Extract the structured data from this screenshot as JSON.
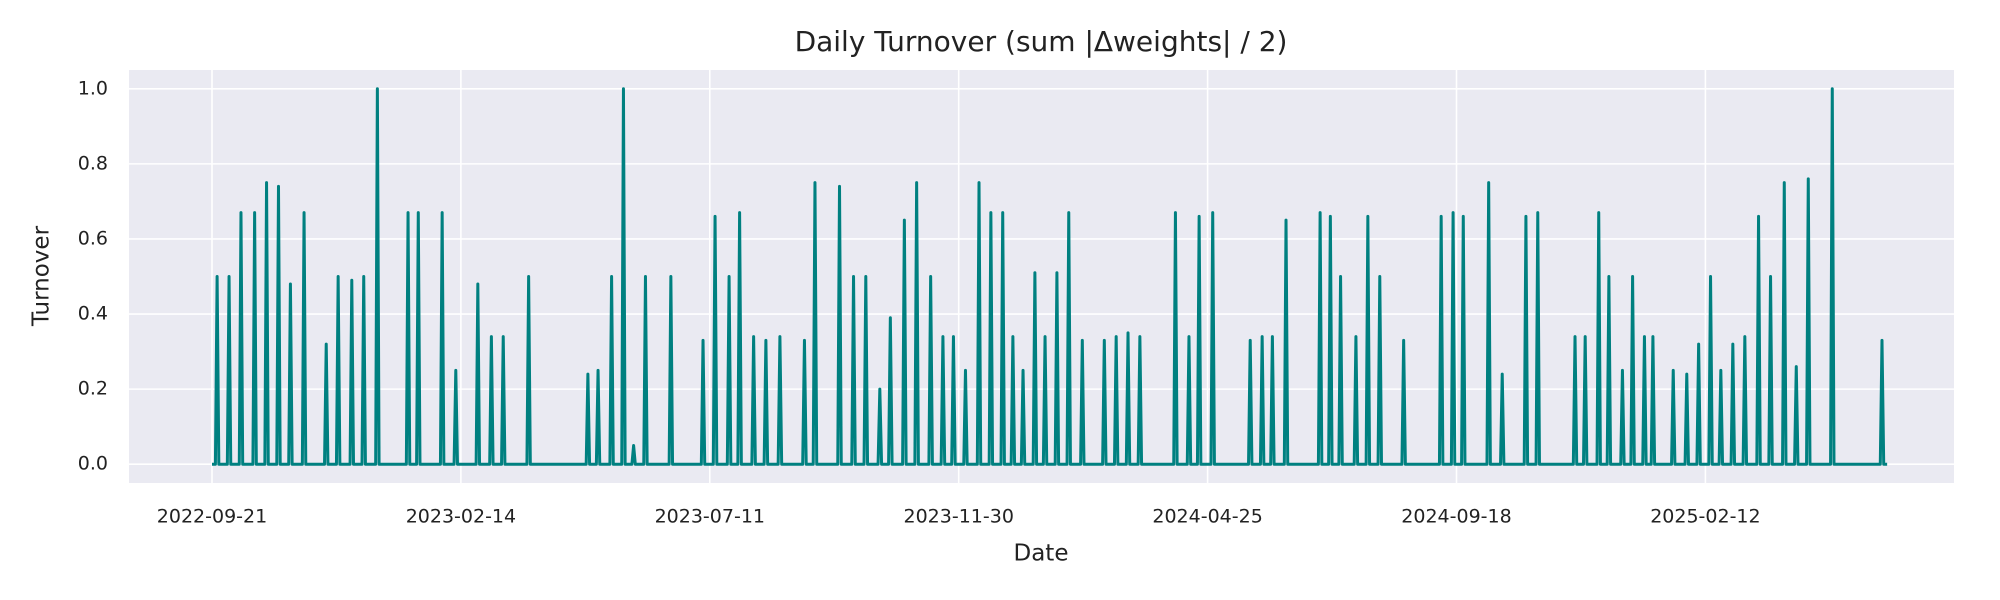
{
  "chart_data": {
    "type": "line",
    "title": "Daily Turnover (sum |Δweights| / 2)",
    "xlabel": "Date",
    "ylabel": "Turnover",
    "grid": true,
    "xlim": [
      "2022-08-04",
      "2025-07-07"
    ],
    "xticks": [
      "2022-09-21",
      "2023-02-14",
      "2023-07-11",
      "2023-11-30",
      "2024-04-25",
      "2024-09-18",
      "2025-02-12"
    ],
    "ylim": [
      -0.05,
      1.05
    ],
    "yticks": [
      {
        "value": 0,
        "label": "0.0"
      },
      0.2,
      0.4,
      0.6,
      0.8,
      {
        "value": 1,
        "label": "1.0"
      }
    ],
    "x": [
      "2022-09-21",
      "2022-09-23",
      "2022-09-24",
      "2022-09-25",
      "2022-09-30",
      "2022-10-01",
      "2022-10-02",
      "2022-10-07",
      "2022-10-08",
      "2022-10-09",
      "2022-10-15",
      "2022-10-16",
      "2022-10-17",
      "2022-10-22",
      "2022-10-23",
      "2022-10-24",
      "2022-10-29",
      "2022-10-30",
      "2022-10-31",
      "2022-11-05",
      "2022-11-06",
      "2022-11-07",
      "2022-11-13",
      "2022-11-14",
      "2022-11-15",
      "2022-11-26",
      "2022-11-27",
      "2022-11-28",
      "2022-12-03",
      "2022-12-04",
      "2022-12-05",
      "2022-12-11",
      "2022-12-12",
      "2022-12-13",
      "2022-12-18",
      "2022-12-19",
      "2022-12-20",
      "2022-12-26",
      "2022-12-27",
      "2022-12-28",
      "2023-01-13",
      "2023-01-14",
      "2023-01-15",
      "2023-01-19",
      "2023-01-20",
      "2023-01-21",
      "2023-02-02",
      "2023-02-03",
      "2023-02-04",
      "2023-02-10",
      "2023-02-11",
      "2023-02-12",
      "2023-02-23",
      "2023-02-24",
      "2023-02-25",
      "2023-03-03",
      "2023-03-04",
      "2023-03-05",
      "2023-03-10",
      "2023-03-11",
      "2023-03-12",
      "2023-03-25",
      "2023-03-26",
      "2023-03-27",
      "2023-04-29",
      "2023-04-30",
      "2023-05-01",
      "2023-05-05",
      "2023-05-06",
      "2023-05-07",
      "2023-05-13",
      "2023-05-14",
      "2023-05-15",
      "2023-05-20",
      "2023-05-21",
      "2023-05-22",
      "2023-05-26",
      "2023-05-27",
      "2023-05-28",
      "2023-06-02",
      "2023-06-03",
      "2023-06-04",
      "2023-06-17",
      "2023-06-18",
      "2023-06-19",
      "2023-07-06",
      "2023-07-07",
      "2023-07-08",
      "2023-07-13",
      "2023-07-14",
      "2023-07-15",
      "2023-07-21",
      "2023-07-22",
      "2023-07-23",
      "2023-07-27",
      "2023-07-28",
      "2023-07-29",
      "2023-08-04",
      "2023-08-05",
      "2023-08-06",
      "2023-08-11",
      "2023-08-12",
      "2023-08-13",
      "2023-08-19",
      "2023-08-20",
      "2023-08-21",
      "2023-09-02",
      "2023-09-03",
      "2023-09-04",
      "2023-09-08",
      "2023-09-09",
      "2023-09-10",
      "2023-09-22",
      "2023-09-23",
      "2023-09-24",
      "2023-09-30",
      "2023-10-01",
      "2023-10-02",
      "2023-10-07",
      "2023-10-08",
      "2023-10-09",
      "2023-10-15",
      "2023-10-16",
      "2023-10-17",
      "2023-10-21",
      "2023-10-22",
      "2023-10-23",
      "2023-10-29",
      "2023-10-30",
      "2023-10-31",
      "2023-11-05",
      "2023-11-06",
      "2023-11-07",
      "2023-11-13",
      "2023-11-14",
      "2023-11-15",
      "2023-11-20",
      "2023-11-21",
      "2023-11-22",
      "2023-11-26",
      "2023-11-27",
      "2023-11-28",
      "2023-12-03",
      "2023-12-04",
      "2023-12-05",
      "2023-12-11",
      "2023-12-12",
      "2023-12-13",
      "2023-12-18",
      "2023-12-19",
      "2023-12-20",
      "2023-12-25",
      "2023-12-26",
      "2023-12-27",
      "2023-12-31",
      "2024-01-01",
      "2024-01-02",
      "2024-01-06",
      "2024-01-07",
      "2024-01-08",
      "2024-01-13",
      "2024-01-14",
      "2024-01-15",
      "2024-01-19",
      "2024-01-20",
      "2024-01-21",
      "2024-01-26",
      "2024-01-27",
      "2024-01-28",
      "2024-02-02",
      "2024-02-03",
      "2024-02-04",
      "2024-02-10",
      "2024-02-11",
      "2024-02-12",
      "2024-02-23",
      "2024-02-24",
      "2024-02-25",
      "2024-03-01",
      "2024-03-02",
      "2024-03-03",
      "2024-03-08",
      "2024-03-09",
      "2024-03-10",
      "2024-03-15",
      "2024-03-16",
      "2024-03-17",
      "2024-04-05",
      "2024-04-06",
      "2024-04-07",
      "2024-04-13",
      "2024-04-14",
      "2024-04-15",
      "2024-04-19",
      "2024-04-20",
      "2024-04-21",
      "2024-04-27",
      "2024-04-28",
      "2024-04-29",
      "2024-05-19",
      "2024-05-20",
      "2024-05-21",
      "2024-05-26",
      "2024-05-27",
      "2024-05-28",
      "2024-06-01",
      "2024-06-02",
      "2024-06-03",
      "2024-06-09",
      "2024-06-10",
      "2024-06-11",
      "2024-06-29",
      "2024-06-30",
      "2024-07-01",
      "2024-07-05",
      "2024-07-06",
      "2024-07-07",
      "2024-07-11",
      "2024-07-12",
      "2024-07-13",
      "2024-07-20",
      "2024-07-21",
      "2024-07-22",
      "2024-07-27",
      "2024-07-28",
      "2024-07-29",
      "2024-08-03",
      "2024-08-04",
      "2024-08-05",
      "2024-08-17",
      "2024-08-18",
      "2024-08-19",
      "2024-09-08",
      "2024-09-09",
      "2024-09-10",
      "2024-09-15",
      "2024-09-16",
      "2024-09-17",
      "2024-09-21",
      "2024-09-22",
      "2024-09-23",
      "2024-10-06",
      "2024-10-07",
      "2024-10-08",
      "2024-10-14",
      "2024-10-15",
      "2024-10-16",
      "2024-10-28",
      "2024-10-29",
      "2024-10-30",
      "2024-11-04",
      "2024-11-05",
      "2024-11-06",
      "2024-11-26",
      "2024-11-27",
      "2024-11-28",
      "2024-12-02",
      "2024-12-03",
      "2024-12-04",
      "2024-12-10",
      "2024-12-11",
      "2024-12-12",
      "2024-12-16",
      "2024-12-17",
      "2024-12-18",
      "2024-12-24",
      "2024-12-25",
      "2024-12-26",
      "2024-12-30",
      "2024-12-31",
      "2025-01-01",
      "2025-01-06",
      "2025-01-07",
      "2025-01-08",
      "2025-01-11",
      "2025-01-12",
      "2025-01-13",
      "2025-01-23",
      "2025-01-24",
      "2025-01-25",
      "2025-01-31",
      "2025-02-01",
      "2025-02-02",
      "2025-02-07",
      "2025-02-08",
      "2025-02-09",
      "2025-02-14",
      "2025-02-15",
      "2025-02-16",
      "2025-02-20",
      "2025-02-21",
      "2025-02-22",
      "2025-02-27",
      "2025-02-28",
      "2025-03-01",
      "2025-03-06",
      "2025-03-07",
      "2025-03-08",
      "2025-03-14",
      "2025-03-15",
      "2025-03-16",
      "2025-03-21",
      "2025-03-22",
      "2025-03-23",
      "2025-03-29",
      "2025-03-30",
      "2025-03-31",
      "2025-04-05",
      "2025-04-06",
      "2025-04-07",
      "2025-04-12",
      "2025-04-13",
      "2025-04-14",
      "2025-04-26",
      "2025-04-27",
      "2025-04-28",
      "2025-05-25",
      "2025-05-26",
      "2025-05-27",
      "2025-05-29"
    ],
    "series": [
      {
        "name": "Turnover",
        "color": "#008080",
        "values": [
          0,
          0,
          0.5,
          0,
          0,
          0.5,
          0,
          0,
          0.67,
          0,
          0,
          0.67,
          0,
          0,
          0.75,
          0,
          0,
          0.74,
          0,
          0,
          0.48,
          0,
          0,
          0.67,
          0,
          0,
          0.32,
          0,
          0,
          0.5,
          0,
          0,
          0.49,
          0,
          0,
          0.5,
          0,
          0,
          1,
          0,
          0,
          0.67,
          0,
          0,
          0.67,
          0,
          0,
          0.67,
          0,
          0,
          0.25,
          0,
          0,
          0.48,
          0,
          0,
          0.34,
          0,
          0,
          0.34,
          0,
          0,
          0.5,
          0,
          0,
          0.24,
          0,
          0,
          0.25,
          0,
          0,
          0.5,
          0,
          0,
          1,
          0,
          0,
          0.05,
          0,
          0,
          0.5,
          0,
          0,
          0.5,
          0,
          0,
          0.33,
          0,
          0,
          0.66,
          0,
          0,
          0.5,
          0,
          0,
          0.67,
          0,
          0,
          0.34,
          0,
          0,
          0.33,
          0,
          0,
          0.34,
          0,
          0,
          0.33,
          0,
          0,
          0.75,
          0,
          0,
          0.74,
          0,
          0,
          0.5,
          0,
          0,
          0.5,
          0,
          0,
          0.2,
          0,
          0,
          0.39,
          0,
          0,
          0.65,
          0,
          0,
          0.75,
          0,
          0,
          0.5,
          0,
          0,
          0.34,
          0,
          0,
          0.34,
          0,
          0,
          0.25,
          0,
          0,
          0.75,
          0,
          0,
          0.67,
          0,
          0,
          0.67,
          0,
          0,
          0.34,
          0,
          0,
          0.25,
          0,
          0,
          0.51,
          0,
          0,
          0.34,
          0,
          0,
          0.51,
          0,
          0,
          0.67,
          0,
          0,
          0.33,
          0,
          0,
          0.33,
          0,
          0,
          0.34,
          0,
          0,
          0.35,
          0,
          0,
          0.34,
          0,
          0,
          0.67,
          0,
          0,
          0.34,
          0,
          0,
          0.66,
          0,
          0,
          0.67,
          0,
          0,
          0.33,
          0,
          0,
          0.34,
          0,
          0,
          0.34,
          0,
          0,
          0.65,
          0,
          0,
          0.67,
          0,
          0,
          0.66,
          0,
          0,
          0.5,
          0,
          0,
          0.34,
          0,
          0,
          0.66,
          0,
          0,
          0.5,
          0,
          0,
          0.33,
          0,
          0,
          0.66,
          0,
          0,
          0.67,
          0,
          0,
          0.66,
          0,
          0,
          0.75,
          0,
          0,
          0.24,
          0,
          0,
          0.66,
          0,
          0,
          0.67,
          0,
          0,
          0.34,
          0,
          0,
          0.34,
          0,
          0,
          0.67,
          0,
          0,
          0.5,
          0,
          0,
          0.25,
          0,
          0,
          0.5,
          0,
          0,
          0.34,
          0,
          0,
          0.34,
          0,
          0,
          0.25,
          0,
          0,
          0.24,
          0,
          0,
          0.32,
          0,
          0,
          0.5,
          0,
          0,
          0.25,
          0,
          0,
          0.32,
          0,
          0,
          0.34,
          0,
          0,
          0.66,
          0,
          0,
          0.5,
          0,
          0,
          0.75,
          0,
          0,
          0.26,
          0,
          0,
          0.76,
          0,
          0,
          1,
          0,
          0,
          0.33,
          0,
          0
        ]
      }
    ]
  }
}
